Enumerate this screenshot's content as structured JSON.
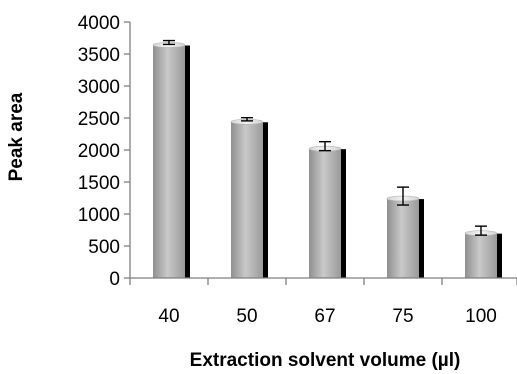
{
  "chart_data": {
    "type": "bar",
    "categories": [
      "40",
      "50",
      "67",
      "75",
      "100"
    ],
    "values": [
      3680,
      2480,
      2060,
      1280,
      740
    ],
    "errors": [
      30,
      25,
      70,
      140,
      70
    ],
    "xlabel": "Extraction solvent volume (µl)",
    "ylabel": "Peak area",
    "ylim": [
      0,
      4000
    ],
    "yticks": [
      0,
      500,
      1000,
      1500,
      2000,
      2500,
      3000,
      3500,
      4000
    ],
    "grid": false,
    "legend": "none",
    "colors": {
      "bar_light": "#ededed",
      "bar_mid": "#a6a6a6",
      "bar_shadow": "#000000",
      "axis": "#7f7f7f"
    }
  }
}
